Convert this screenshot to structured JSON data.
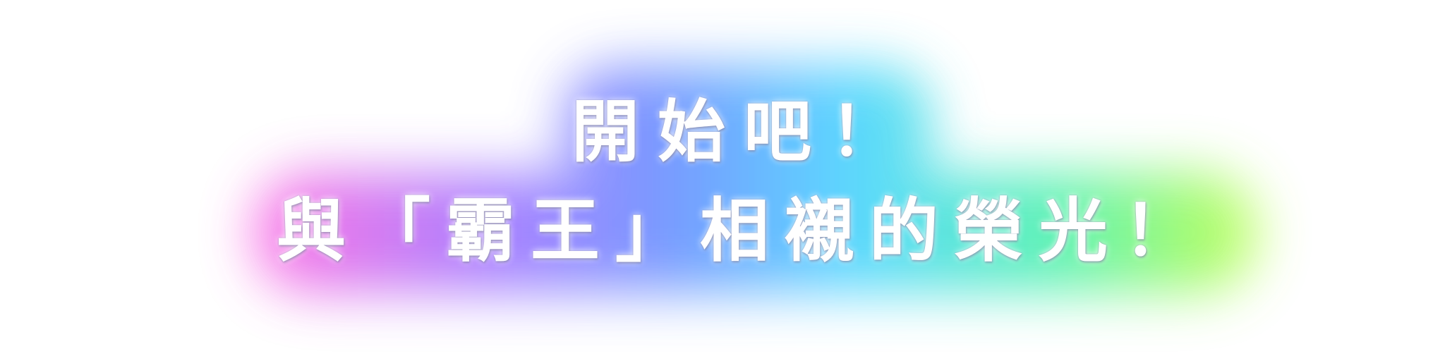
{
  "banner": {
    "line1": "開始吧！",
    "line2": "與「霸王」相襯的榮光！"
  },
  "glow_colors": {
    "pink": "#ff5fe0",
    "violet": "#9a6bff",
    "blue": "#5f8bff",
    "cyan": "#3fd3ff",
    "green": "#43f0a8",
    "lime": "#b9ff3c"
  }
}
